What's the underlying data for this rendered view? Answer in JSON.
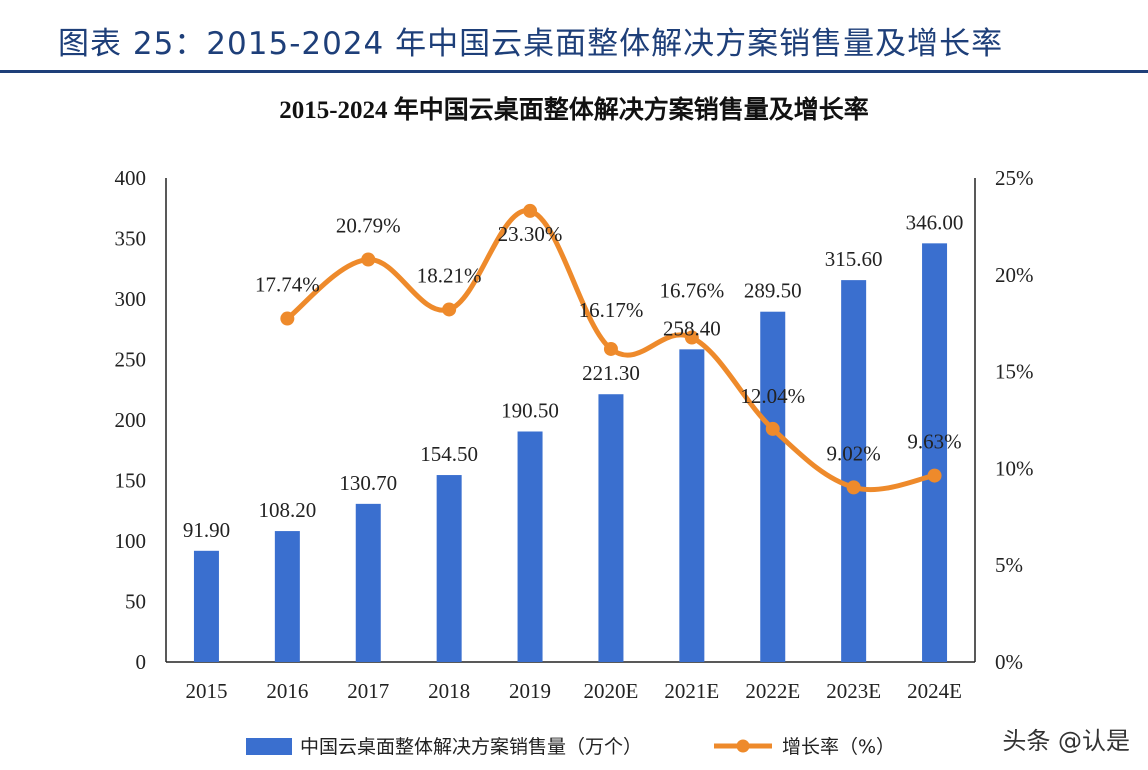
{
  "figure_title": "图表 25：2015-2024 年中国云桌面整体解决方案销售量及增长率",
  "watermark": "头条 @认是",
  "colors": {
    "bar": "#3a6fcf",
    "line": "#ee8a2b",
    "title_blue": "#1e3f79"
  },
  "chart_data": {
    "type": "bar",
    "title": "2015-2024 年中国云桌面整体解决方案销售量及增长率",
    "categories": [
      "2015",
      "2016",
      "2017",
      "2018",
      "2019",
      "2020E",
      "2021E",
      "2022E",
      "2023E",
      "2024E"
    ],
    "series": [
      {
        "name": "中国云桌面整体解决方案销售量（万个）",
        "type": "bar",
        "axis": "left",
        "values": [
          91.9,
          108.2,
          130.7,
          154.5,
          190.5,
          221.3,
          258.4,
          289.5,
          315.6,
          346.0
        ],
        "labels": [
          "91.90",
          "108.20",
          "130.70",
          "154.50",
          "190.50",
          "221.30",
          "258.40",
          "289.50",
          "315.60",
          "346.00"
        ]
      },
      {
        "name": "增长率（%）",
        "type": "line",
        "axis": "right",
        "values": [
          null,
          17.74,
          20.79,
          18.21,
          23.3,
          16.17,
          16.76,
          12.04,
          9.02,
          9.63
        ],
        "labels": [
          "",
          "17.74%",
          "20.79%",
          "18.21%",
          "23.30%",
          "16.17%",
          "16.76%",
          "12.04%",
          "9.02%",
          "9.63%"
        ]
      }
    ],
    "y_left": {
      "lim": [
        0,
        400
      ],
      "ticks": [
        "0",
        "50",
        "100",
        "150",
        "200",
        "250",
        "300",
        "350",
        "400"
      ]
    },
    "y_right": {
      "lim": [
        0,
        25
      ],
      "ticks": [
        "0%",
        "5%",
        "10%",
        "15%",
        "20%",
        "25%"
      ]
    },
    "grid": false,
    "legend": "bottom"
  }
}
